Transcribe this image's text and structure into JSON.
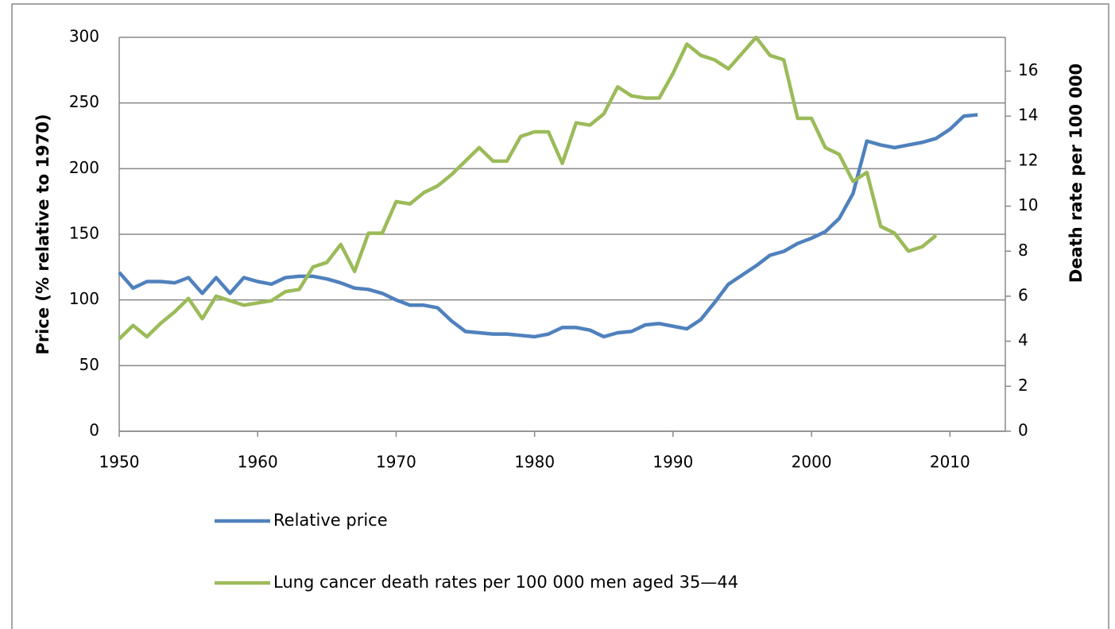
{
  "chart_data": {
    "type": "line",
    "x": [
      1950,
      1951,
      1952,
      1953,
      1954,
      1955,
      1956,
      1957,
      1958,
      1959,
      1960,
      1961,
      1962,
      1963,
      1964,
      1965,
      1966,
      1967,
      1968,
      1969,
      1970,
      1971,
      1972,
      1973,
      1974,
      1975,
      1976,
      1977,
      1978,
      1979,
      1980,
      1981,
      1982,
      1983,
      1984,
      1985,
      1986,
      1987,
      1988,
      1989,
      1990,
      1991,
      1992,
      1993,
      1994,
      1995,
      1996,
      1997,
      1998,
      1999,
      2000,
      2001,
      2002,
      2003,
      2004,
      2005,
      2006,
      2007,
      2008,
      2009,
      2010,
      2011,
      2012
    ],
    "series": [
      {
        "name": "Relative price",
        "color": "#4f81bd",
        "axis": "y",
        "values": [
          121,
          109,
          114,
          114,
          113,
          117,
          105,
          117,
          105,
          117,
          114,
          112,
          117,
          118,
          118,
          116,
          113,
          109,
          108,
          105,
          100,
          96,
          96,
          94,
          84,
          76,
          75,
          74,
          74,
          73,
          72,
          74,
          79,
          79,
          77,
          72,
          75,
          76,
          81,
          82,
          80,
          78,
          85,
          98,
          112,
          119,
          126,
          134,
          137,
          143,
          147,
          152,
          162,
          181,
          221,
          218,
          216,
          218,
          220,
          223,
          230,
          240,
          241
        ]
      },
      {
        "name": "Lung cancer death rates per 100 000 men aged 35—44",
        "color": "#9bbb59",
        "axis": "y2",
        "values": [
          4.1,
          4.7,
          4.2,
          4.8,
          5.3,
          5.9,
          5.0,
          6.0,
          5.8,
          5.6,
          5.7,
          5.8,
          6.2,
          6.3,
          7.3,
          7.5,
          8.3,
          7.1,
          8.8,
          8.8,
          10.2,
          10.1,
          10.6,
          10.9,
          11.4,
          12.0,
          12.6,
          12.0,
          12.0,
          13.1,
          13.3,
          13.3,
          11.9,
          13.7,
          13.6,
          14.1,
          15.3,
          14.9,
          14.8,
          14.8,
          15.9,
          17.2,
          16.7,
          16.5,
          16.1,
          16.8,
          17.5,
          16.7,
          16.5,
          13.9,
          13.9,
          12.6,
          12.3,
          11.1,
          11.5,
          9.1,
          8.8,
          8.0,
          8.2,
          8.7,
          null,
          null,
          null
        ]
      }
    ],
    "y_label": "Price (% relative to 1970)",
    "y2_label": "Death rate per 100 000",
    "xlim": [
      1950,
      2014
    ],
    "xticks": [
      1950,
      1960,
      1970,
      1980,
      1990,
      2000,
      2010
    ],
    "ylim": [
      0,
      300
    ],
    "yticks": [
      0,
      50,
      100,
      150,
      200,
      250,
      300
    ],
    "y2lim": [
      0,
      17.5
    ],
    "y2ticks": [
      0,
      2,
      4,
      6,
      8,
      10,
      12,
      14,
      16
    ],
    "grid": true,
    "legend": "bottom"
  }
}
